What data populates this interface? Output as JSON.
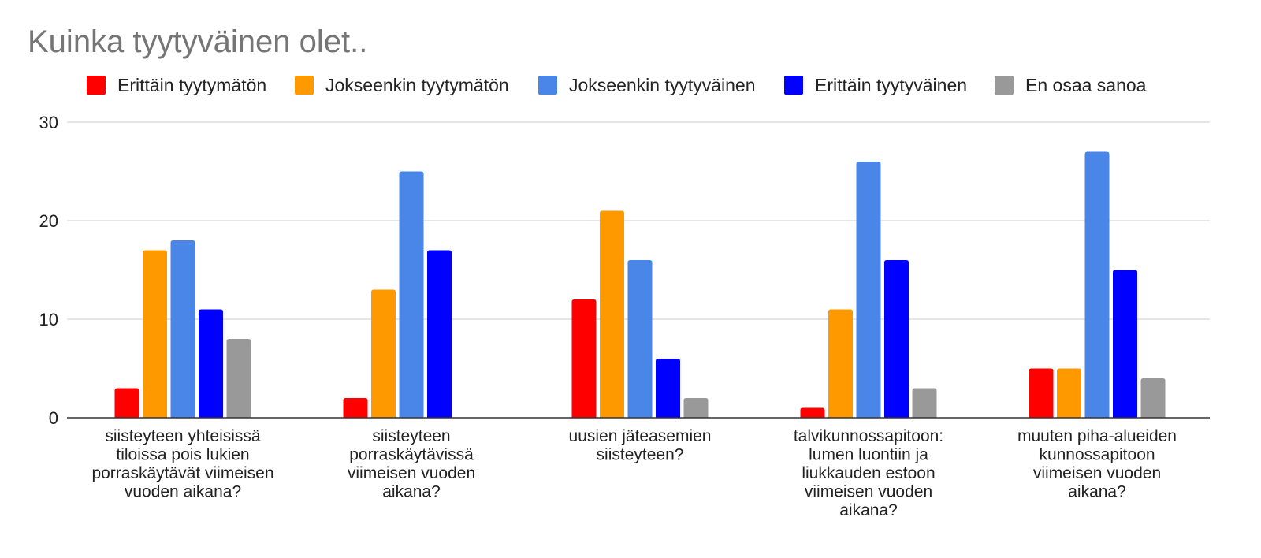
{
  "chart_data": {
    "type": "bar",
    "title": "Kuinka tyytyväinen olet..",
    "legend_position": "top",
    "grid": true,
    "ylim": [
      0,
      30
    ],
    "yticks": [
      "0",
      "10",
      "20",
      "30"
    ],
    "categories": [
      "siisteyteen yhteisissä tiloissa pois lukien porraskäytävät viimeisen vuoden aikana?",
      "siisteyteen porraskäytävissä viimeisen vuoden aikana?",
      "uusien jäteasemien siisteyteen?",
      "talvikunnossapitoon: lumen luontiin ja liukkauden estoon viimeisen vuoden aikana?",
      "muuten piha-alueiden kunnossapitoon viimeisen vuoden aikana?"
    ],
    "category_lines": [
      [
        "siisteyteen yhteisissä",
        "tiloissa pois lukien",
        "porraskäytävät viimeisen",
        "vuoden aikana?"
      ],
      [
        "siisteyteen",
        "porraskäytävissä",
        "viimeisen vuoden",
        "aikana?"
      ],
      [
        "uusien jäteasemien",
        "siisteyteen?"
      ],
      [
        "talvikunnossapitoon:",
        "lumen luontiin ja",
        "liukkauden estoon",
        "viimeisen vuoden",
        "aikana?"
      ],
      [
        "muuten piha-alueiden",
        "kunnossapitoon",
        "viimeisen vuoden",
        "aikana?"
      ]
    ],
    "series": [
      {
        "name": "Erittäin tyytymätön",
        "color": "#ff0000",
        "values": [
          3,
          2,
          12,
          1,
          5
        ]
      },
      {
        "name": "Jokseenkin tyytymätön",
        "color": "#ff9900",
        "values": [
          17,
          13,
          21,
          11,
          5
        ]
      },
      {
        "name": "Jokseenkin tyytyväinen",
        "color": "#4a86e8",
        "values": [
          18,
          25,
          16,
          26,
          27
        ]
      },
      {
        "name": "Erittäin tyytyväinen",
        "color": "#0000ff",
        "values": [
          11,
          17,
          6,
          16,
          15
        ]
      },
      {
        "name": "En osaa sanoa",
        "color": "#999999",
        "values": [
          8,
          0,
          2,
          3,
          4
        ]
      }
    ]
  }
}
